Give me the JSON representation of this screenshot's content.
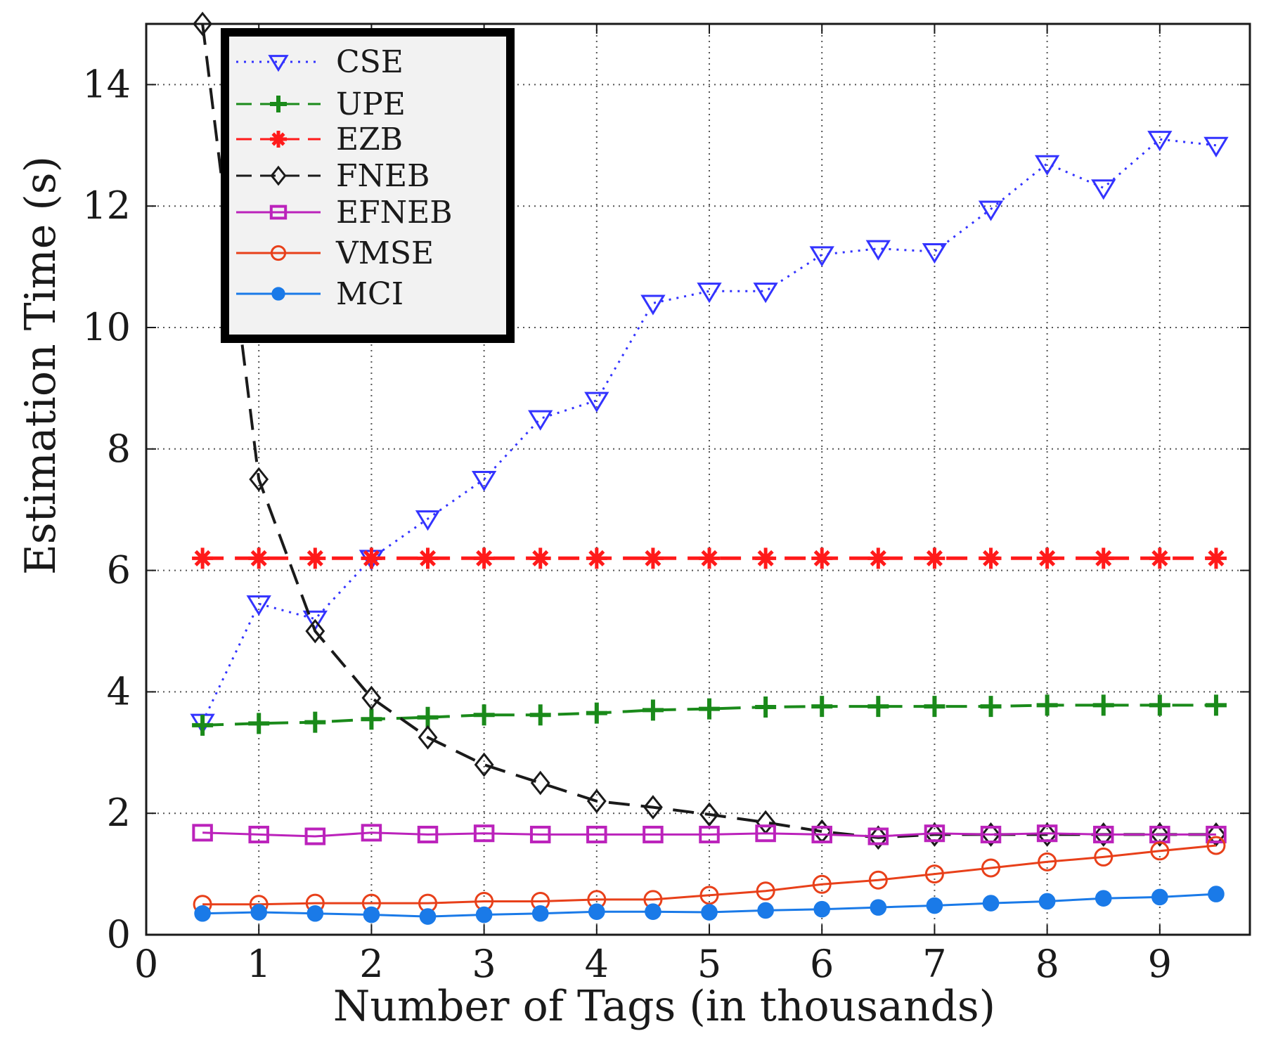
{
  "chart_data": {
    "type": "line",
    "title": "",
    "xlabel": "Number of Tags (in thousands)",
    "ylabel": "Estimation Time (s)",
    "xlim": [
      0,
      9.8
    ],
    "ylim": [
      0,
      15
    ],
    "xticks": [
      0,
      1,
      2,
      3,
      4,
      5,
      6,
      7,
      8,
      9
    ],
    "yticks": [
      0,
      2,
      4,
      6,
      8,
      10,
      12,
      14
    ],
    "grid": true,
    "legend_position": "top-left",
    "x": [
      0.5,
      1,
      1.5,
      2,
      2.5,
      3,
      3.5,
      4,
      4.5,
      5,
      5.5,
      6,
      6.5,
      7,
      7.5,
      8,
      8.5,
      9,
      9.5
    ],
    "series": [
      {
        "name": "CSE",
        "color": "#3333ff",
        "line": "dotted",
        "marker": "triangle-down",
        "values": [
          3.5,
          5.45,
          5.2,
          6.2,
          6.85,
          7.5,
          8.5,
          8.8,
          10.4,
          10.6,
          10.6,
          11.2,
          11.3,
          11.25,
          11.95,
          12.7,
          12.3,
          13.1,
          13.0
        ]
      },
      {
        "name": "UPE",
        "color": "#1a8a1a",
        "line": "dashed",
        "marker": "plus",
        "values": [
          3.45,
          3.48,
          3.5,
          3.55,
          3.58,
          3.62,
          3.62,
          3.65,
          3.7,
          3.72,
          3.75,
          3.76,
          3.76,
          3.76,
          3.76,
          3.78,
          3.78,
          3.78,
          3.78
        ]
      },
      {
        "name": "EZB",
        "color": "#ff1a1a",
        "line": "dashed",
        "marker": "star",
        "values": [
          6.2,
          6.2,
          6.2,
          6.2,
          6.2,
          6.2,
          6.2,
          6.2,
          6.2,
          6.2,
          6.2,
          6.2,
          6.2,
          6.2,
          6.2,
          6.2,
          6.2,
          6.2,
          6.2
        ]
      },
      {
        "name": "FNEB",
        "color": "#1a1a1a",
        "line": "dashed",
        "marker": "diamond",
        "values": [
          15.0,
          7.5,
          5.0,
          3.9,
          3.25,
          2.8,
          2.5,
          2.2,
          2.1,
          1.98,
          1.85,
          1.7,
          1.6,
          1.65,
          1.65,
          1.65,
          1.65,
          1.65,
          1.65
        ]
      },
      {
        "name": "EFNEB",
        "color": "#bb22bb",
        "line": "solid",
        "marker": "square",
        "values": [
          1.68,
          1.65,
          1.62,
          1.68,
          1.65,
          1.67,
          1.65,
          1.65,
          1.65,
          1.65,
          1.67,
          1.65,
          1.62,
          1.67,
          1.65,
          1.67,
          1.65,
          1.65,
          1.65
        ]
      },
      {
        "name": "VMSE",
        "color": "#e8401a",
        "line": "solid",
        "marker": "circle-open",
        "values": [
          0.5,
          0.5,
          0.52,
          0.52,
          0.52,
          0.55,
          0.55,
          0.58,
          0.58,
          0.65,
          0.72,
          0.83,
          0.9,
          1.0,
          1.1,
          1.2,
          1.28,
          1.38,
          1.47
        ]
      },
      {
        "name": "MCI",
        "color": "#1a7ae8",
        "line": "solid",
        "marker": "circle-filled",
        "values": [
          0.35,
          0.37,
          0.35,
          0.33,
          0.3,
          0.33,
          0.35,
          0.38,
          0.38,
          0.37,
          0.4,
          0.42,
          0.45,
          0.48,
          0.52,
          0.55,
          0.6,
          0.62,
          0.67
        ]
      }
    ]
  }
}
